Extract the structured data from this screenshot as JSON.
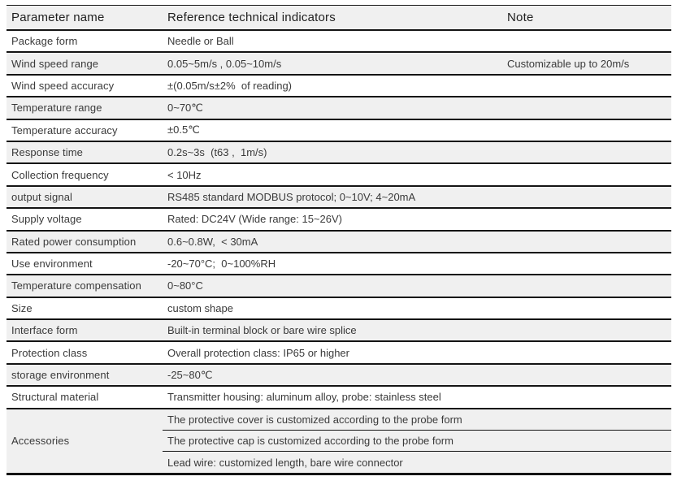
{
  "colors": {
    "row_shade": "#f0f0f0",
    "rule": "#141414",
    "text": "#3a3a3a",
    "header_text": "#1f1f1f"
  },
  "table": {
    "headers": [
      "Parameter name",
      "Reference technical indicators",
      "Note"
    ],
    "rows": [
      {
        "param": "Package form",
        "value": "Needle or Ball",
        "note": ""
      },
      {
        "param": "Wind speed range",
        "value": "0.05~5m/s , 0.05~10m/s",
        "note": "Customizable up to 20m/s"
      },
      {
        "param": "Wind speed accuracy",
        "value": "±(0.05m/s±2%  of reading)",
        "note": ""
      },
      {
        "param": "Temperature range",
        "value": "0~70℃",
        "note": ""
      },
      {
        "param": "Temperature accuracy",
        "value": "±0.5℃",
        "note": ""
      },
      {
        "param": "Response time",
        "value": "0.2s~3s  (t63 ,  1m/s)",
        "note": ""
      },
      {
        "param": "Collection frequency",
        "value": "< 10Hz",
        "note": ""
      },
      {
        "param": "output signal",
        "value": "RS485 standard MODBUS protocol; 0~10V; 4~20mA",
        "note": ""
      },
      {
        "param": "Supply voltage",
        "value": "Rated: DC24V (Wide range: 15~26V)",
        "note": ""
      },
      {
        "param": "Rated power consumption",
        "value": "0.6~0.8W,  < 30mA",
        "note": ""
      },
      {
        "param": "Use environment",
        "value": "-20~70°C;  0~100%RH",
        "note": ""
      },
      {
        "param": "Temperature compensation",
        "value": "0~80°C",
        "note": ""
      },
      {
        "param": "Size",
        "value": "custom shape",
        "note": ""
      },
      {
        "param": "Interface form",
        "value": "Built-in terminal block or bare wire splice",
        "note": ""
      },
      {
        "param": "Protection class",
        "value": "Overall protection class: IP65 or higher",
        "note": ""
      },
      {
        "param": "storage environment",
        "value": "-25~80℃",
        "note": ""
      },
      {
        "param": "Structural material",
        "value": "Transmitter housing: aluminum alloy, probe: stainless steel",
        "note": ""
      },
      {
        "param": "Accessories",
        "values": [
          "The protective cover is customized according to the probe form",
          "The protective cap is customized according to the probe form",
          "Lead wire: customized length, bare wire connector"
        ]
      }
    ]
  }
}
